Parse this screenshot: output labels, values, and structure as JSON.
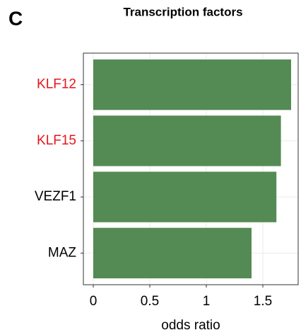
{
  "chart_data": {
    "type": "bar",
    "orientation": "horizontal",
    "panel_label": "C",
    "title": "Transcription factors",
    "categories": [
      "KLF12",
      "KLF15",
      "VEZF1",
      "MAZ"
    ],
    "category_colors": [
      "#e8141b",
      "#e8141b",
      "#000000",
      "#000000"
    ],
    "values": [
      1.75,
      1.66,
      1.62,
      1.4
    ],
    "color": "#548b54",
    "xlabel": "odds ratio",
    "xlim": [
      -0.0875,
      1.8125
    ],
    "xticks": [
      0,
      0.5,
      1,
      1.5
    ],
    "grid": true
  }
}
